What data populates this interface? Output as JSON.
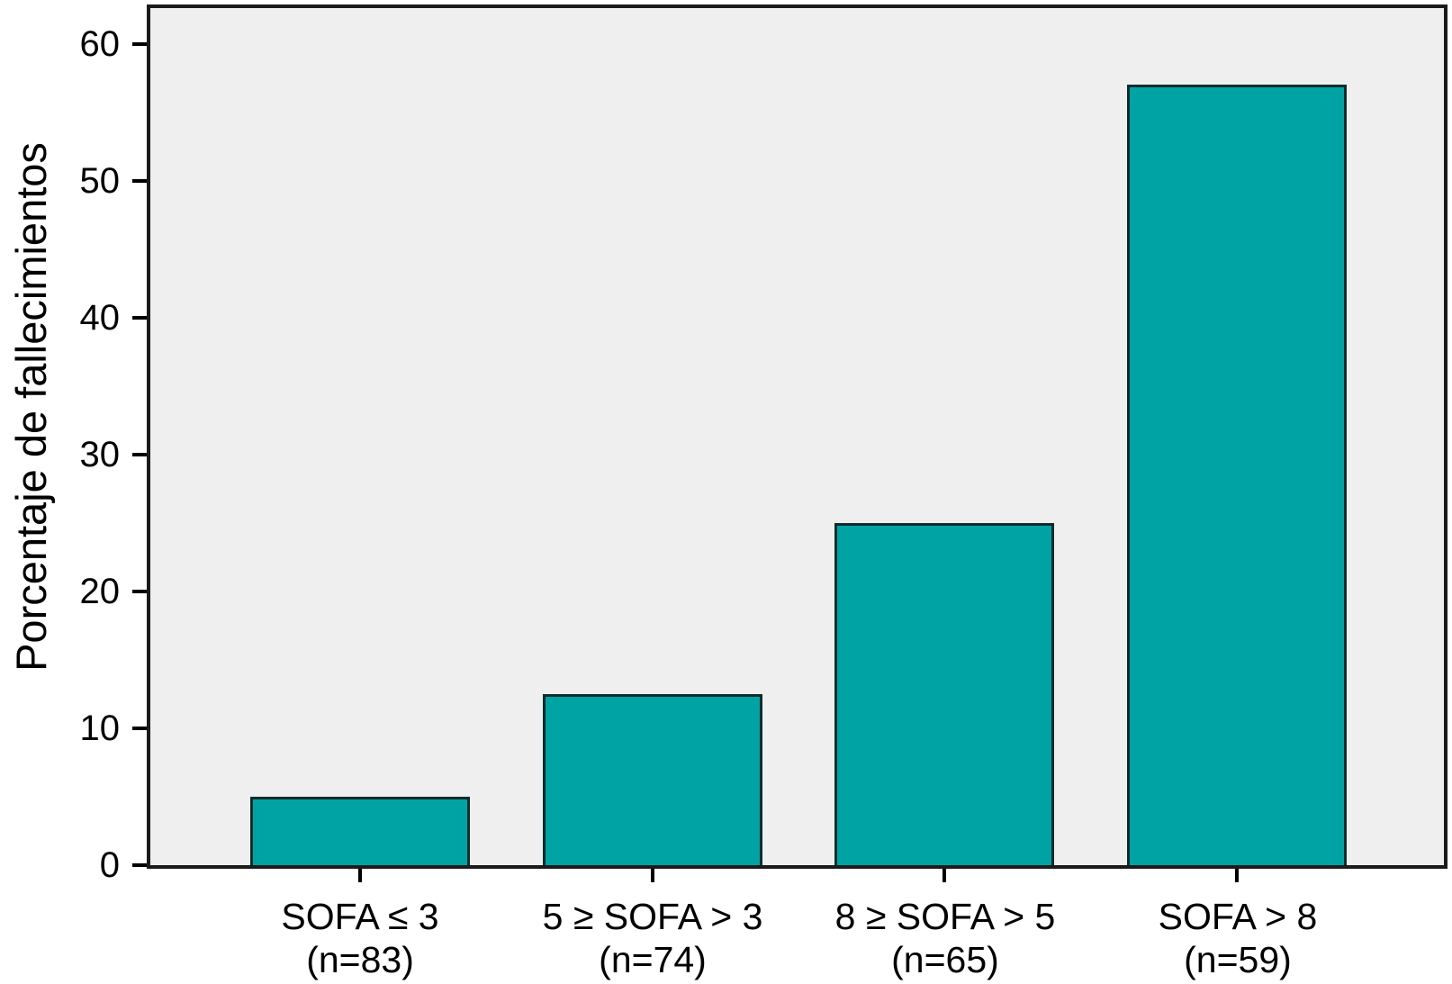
{
  "chart_data": {
    "type": "bar",
    "title": "",
    "xlabel": "",
    "ylabel": "Porcentaje de fallecimientos",
    "ylim": [
      0,
      60
    ],
    "yticks": [
      0,
      10,
      20,
      30,
      40,
      50,
      60
    ],
    "grid": false,
    "legend": null,
    "categories": [
      "SOFA ≤ 3",
      "5 ≥ SOFA > 3",
      "8 ≥ SOFA > 5",
      "SOFA > 8"
    ],
    "category_sublabels": [
      "(n=83)",
      "(n=74)",
      "(n=65)",
      "(n=59)"
    ],
    "values": [
      5,
      12.5,
      25,
      57
    ],
    "colors": {
      "bar_fill": "#00a3a4",
      "bar_border": "#0d2c2c",
      "plot_background": "#efefef",
      "axis": "#000000",
      "text": "#000000"
    }
  }
}
